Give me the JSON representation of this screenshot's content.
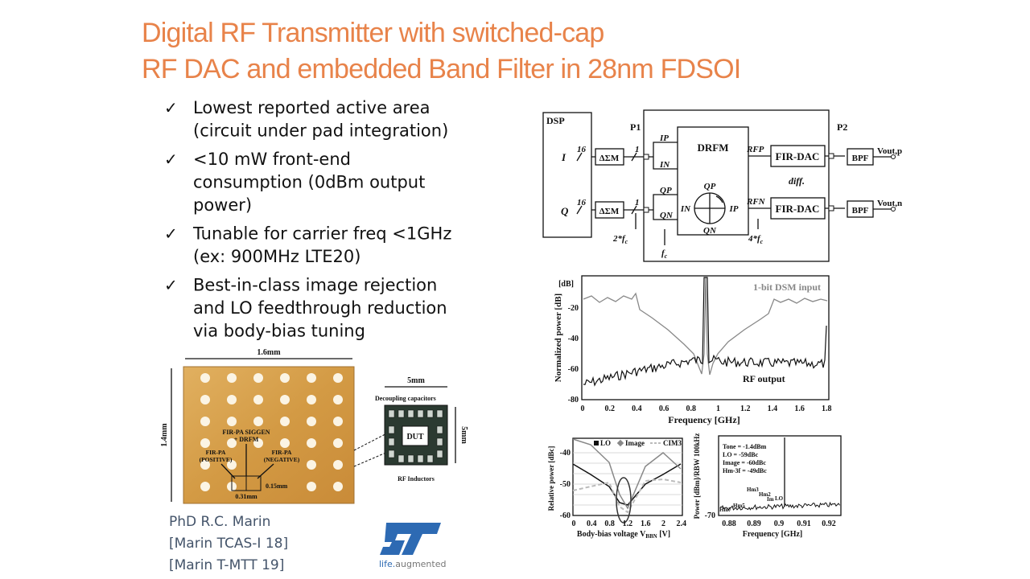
{
  "title": [
    "Digital RF Transmitter with switched-cap",
    "RF DAC and embedded Band Filter in 28nm FDSOI"
  ],
  "bullets": [
    [
      "Lowest reported active area",
      "(circuit under pad integration)"
    ],
    [
      "<10 mW front-end",
      "consumption (0dBm output",
      "power)"
    ],
    [
      "Tunable for carrier freq <1GHz",
      "(ex: 900MHz LTE20)"
    ],
    [
      "Best-in-class image rejection",
      "and LO feedthrough reduction",
      "via body-bias tuning"
    ]
  ],
  "check": "✓",
  "credits": [
    "PhD R.C. Marin",
    "[Marin TCAS-I 18]",
    "[Marin T-MTT 19]"
  ],
  "logo": {
    "tagline": [
      "life.",
      "augmented"
    ]
  },
  "die_photo": {
    "width": "1.6mm",
    "height": "1.4mm",
    "labels": [
      "FIR-PA SIGGEN",
      "+ DRFM",
      "FIR-PA",
      "(POSITIVE)",
      "FIR-PA",
      "(NEGATIVE)",
      "0.15mm",
      "0.31mm"
    ]
  },
  "package": {
    "width": "5mm",
    "height": "5mm",
    "decap": "Decoupling capacitors",
    "dut": "DUT",
    "inductors": "RF Inductors"
  },
  "block_diagram": {
    "dsp": "DSP",
    "p1": "P1",
    "p2": "P2",
    "i": "I",
    "q": "Q",
    "bits": [
      "16",
      "16",
      "1",
      "1"
    ],
    "dsm": [
      "ΔΣM",
      "ΔΣM"
    ],
    "inputs": [
      "IP",
      "IN",
      "QP",
      "QN"
    ],
    "drfm": "DRFM",
    "phases": [
      "QP",
      "IN",
      "IP",
      "QN"
    ],
    "rf": [
      "RFP",
      "RFN"
    ],
    "dac": [
      "FIR-DAC",
      "FIR-DAC"
    ],
    "diff": "diff.",
    "bpf": [
      "BPF",
      "BPF"
    ],
    "vout": [
      "Vout,p",
      "Vout,n"
    ],
    "clocks": [
      {
        "text": "2*f",
        "sub": "c"
      },
      {
        "text": "f",
        "sub": "c"
      },
      {
        "text": "4*f",
        "sub": "c"
      }
    ]
  },
  "spectrum": {
    "ylabel": "Normalized power [dB]",
    "xlabel": "Frequency [GHz]",
    "yunit": "[dB]",
    "yticks": [
      "-20",
      "-40",
      "-60",
      "-80"
    ],
    "xticks": [
      "0",
      "0.2",
      "0.4",
      "0.6",
      "0.8",
      "1",
      "1.2",
      "1.4",
      "1.6",
      "1.8"
    ],
    "legend": [
      "1-bit DSM input",
      "RF output"
    ]
  },
  "bias_plot": {
    "ylabel": "Relative power [dBc]",
    "xlabel": [
      "Body-bias voltage V",
      "BBN",
      " [V]"
    ],
    "yticks": [
      "-40",
      "-50",
      "-60"
    ],
    "xticks": [
      "0",
      "0.4",
      "0.8",
      "1.2",
      "1.6",
      "2",
      "2.4"
    ],
    "legend": [
      "LO",
      "Image",
      "CIM3"
    ]
  },
  "tone_plot": {
    "ylabel": "Power [dBm]/RBW 100kHz",
    "xlabel": "Frequency [GHz]",
    "yticks": [
      "-70"
    ],
    "xticks": [
      "0.88",
      "0.89",
      "0.9",
      "0.91",
      "0.92"
    ],
    "notes": [
      "Tone = -1.4dBm",
      "LO = -59dBc",
      "Image = -60dBc",
      "Hm-3f = -49dBc"
    ],
    "spurs": [
      "Hm3",
      "Hm2",
      "Im",
      "LO",
      "Hm7",
      "Hm5"
    ]
  }
}
